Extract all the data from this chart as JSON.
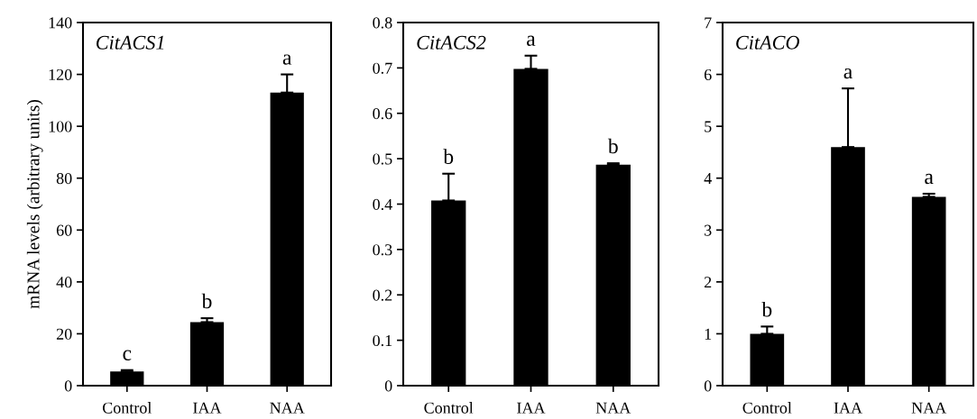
{
  "chart_data": [
    {
      "type": "bar",
      "title": "CitACS1",
      "ylabel": "mRNA levels (arbitrary units)",
      "categories": [
        "Control",
        "IAA",
        "NAA"
      ],
      "values": [
        5.5,
        24.5,
        113
      ],
      "color": "#000000",
      "errors": [
        [
          5.5,
          6.0
        ],
        [
          24.5,
          26
        ],
        [
          113,
          120
        ]
      ],
      "ylim": [
        0,
        140
      ],
      "yticks": [
        0,
        20,
        40,
        60,
        80,
        100,
        120,
        140
      ],
      "grid": false,
      "annotations": [
        {
          "text": "c",
          "x": "Control",
          "y": 6.0
        },
        {
          "text": "b",
          "x": "IAA",
          "y": 26
        },
        {
          "text": "a",
          "x": "NAA",
          "y": 120
        }
      ]
    },
    {
      "type": "bar",
      "title": "CitACS2",
      "categories": [
        "Control",
        "IAA",
        "NAA"
      ],
      "values": [
        0.408,
        0.698,
        0.487
      ],
      "color": "#000000",
      "errors": [
        [
          0.408,
          0.467
        ],
        [
          0.698,
          0.727
        ],
        [
          0.487,
          0.49
        ]
      ],
      "ylim": [
        0,
        0.8
      ],
      "yticks": [
        0,
        0.1,
        0.2,
        0.3,
        0.4,
        0.5,
        0.6,
        0.7,
        0.8
      ],
      "grid": false,
      "annotations": [
        {
          "text": "b",
          "x": "Control",
          "y": 0.467
        },
        {
          "text": "a",
          "x": "IAA",
          "y": 0.727
        },
        {
          "text": "b",
          "x": "NAA",
          "y": 0.49
        }
      ]
    },
    {
      "type": "bar",
      "title": "CitACO",
      "categories": [
        "Control",
        "IAA",
        "NAA"
      ],
      "values": [
        1.0,
        4.6,
        3.64
      ],
      "color": "#000000",
      "errors": [
        [
          1.0,
          1.14
        ],
        [
          4.6,
          5.73
        ],
        [
          3.64,
          3.7
        ]
      ],
      "ylim": [
        0,
        7
      ],
      "yticks": [
        0,
        1,
        2,
        3,
        4,
        5,
        6,
        7
      ],
      "grid": false,
      "annotations": [
        {
          "text": "b",
          "x": "Control",
          "y": 1.14
        },
        {
          "text": "a",
          "x": "IAA",
          "y": 5.73
        },
        {
          "text": "a",
          "x": "NAA",
          "y": 3.7
        }
      ]
    }
  ]
}
